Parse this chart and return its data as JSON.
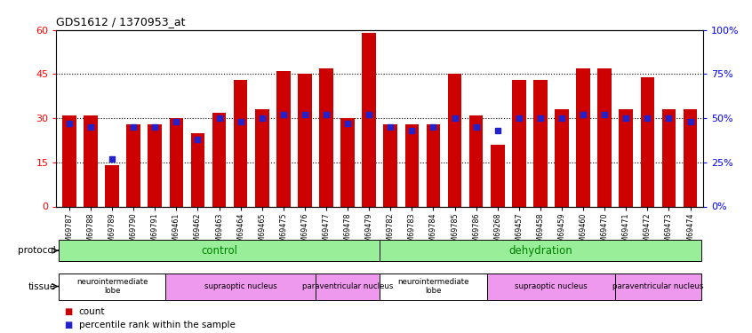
{
  "title": "GDS1612 / 1370953_at",
  "samples": [
    "GSM69787",
    "GSM69788",
    "GSM69789",
    "GSM69790",
    "GSM69791",
    "GSM69461",
    "GSM69462",
    "GSM69463",
    "GSM69464",
    "GSM69465",
    "GSM69475",
    "GSM69476",
    "GSM69477",
    "GSM69478",
    "GSM69479",
    "GSM69782",
    "GSM69783",
    "GSM69784",
    "GSM69785",
    "GSM69786",
    "GSM69268",
    "GSM69457",
    "GSM69458",
    "GSM69459",
    "GSM69460",
    "GSM69470",
    "GSM69471",
    "GSM69472",
    "GSM69473",
    "GSM69474"
  ],
  "count_values": [
    31,
    31,
    14,
    28,
    28,
    30,
    25,
    32,
    43,
    33,
    46,
    45,
    47,
    30,
    59,
    28,
    28,
    28,
    45,
    31,
    21,
    43,
    43,
    33,
    47,
    47,
    33,
    44,
    33,
    33
  ],
  "percentile_values": [
    47,
    45,
    27,
    45,
    45,
    48,
    38,
    50,
    48,
    50,
    52,
    52,
    52,
    47,
    52,
    45,
    43,
    45,
    50,
    45,
    43,
    50,
    50,
    50,
    52,
    52,
    50,
    50,
    50,
    48
  ],
  "bar_color": "#cc0000",
  "dot_color": "#2222cc",
  "ylim_left": [
    0,
    60
  ],
  "ylim_right": [
    0,
    100
  ],
  "yticks_left": [
    0,
    15,
    30,
    45,
    60
  ],
  "yticks_right": [
    0,
    25,
    50,
    75,
    100
  ],
  "ytick_labels_left": [
    "0",
    "15",
    "30",
    "45",
    "60"
  ],
  "ytick_labels_right": [
    "0%",
    "25%",
    "50%",
    "75%",
    "100%"
  ],
  "hlines": [
    15,
    30,
    45
  ],
  "protocol_groups": [
    {
      "label": "control",
      "start": 0,
      "end": 14,
      "color": "#99ee99"
    },
    {
      "label": "dehydration",
      "start": 15,
      "end": 29,
      "color": "#99ee99"
    }
  ],
  "tissue_groups": [
    {
      "label": "neurointermediate\nlobe",
      "start": 0,
      "end": 4,
      "color": "#ffffff"
    },
    {
      "label": "supraoptic nucleus",
      "start": 5,
      "end": 11,
      "color": "#ee99ee"
    },
    {
      "label": "paraventricular nucleus",
      "start": 12,
      "end": 14,
      "color": "#ee99ee"
    },
    {
      "label": "neurointermediate\nlobe",
      "start": 15,
      "end": 19,
      "color": "#ffffff"
    },
    {
      "label": "supraoptic nucleus",
      "start": 20,
      "end": 25,
      "color": "#ee99ee"
    },
    {
      "label": "paraventricular nucleus",
      "start": 26,
      "end": 29,
      "color": "#ee99ee"
    }
  ],
  "legend_items": [
    {
      "label": "count",
      "color": "#cc0000"
    },
    {
      "label": "percentile rank within the sample",
      "color": "#2222cc"
    }
  ]
}
